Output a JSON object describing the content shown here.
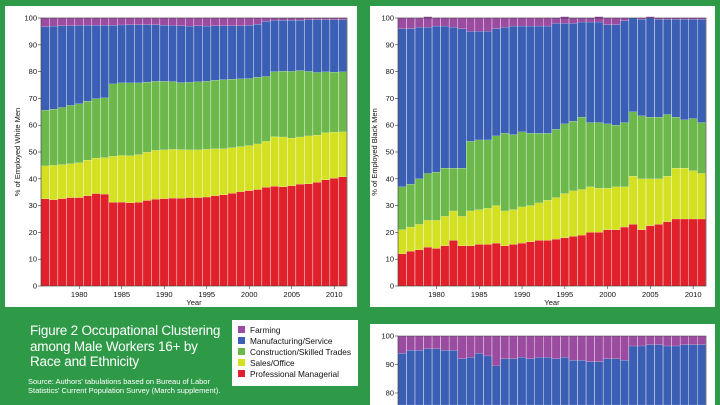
{
  "figure": {
    "title_lines": [
      "Figure 2  Occupational Clustering",
      "among Male Workers 16+ by",
      "Race and Ethnicity"
    ],
    "source_lines": [
      "Source: Authors' tabulations based on Bureau of Labor",
      "Statistics' Current Population Survey (March supplement)."
    ]
  },
  "legend": {
    "items": [
      {
        "label": "Farming",
        "color": "#9b4ba0"
      },
      {
        "label": "Manufacturing/Service",
        "color": "#3a5fb4"
      },
      {
        "label": "Construction/Skilled Trades",
        "color": "#6cb84a"
      },
      {
        "label": "Sales/Office",
        "color": "#d4e022"
      },
      {
        "label": "Professional Managerial",
        "color": "#e0202a"
      }
    ]
  },
  "chart_data": [
    {
      "type": "bar",
      "stacked": true,
      "ylabel": "% of Employed White Men",
      "xlabel": "Year",
      "ylim": [
        0,
        100
      ],
      "yticks": [
        0,
        10,
        20,
        30,
        40,
        50,
        60,
        70,
        80,
        90,
        100
      ],
      "xticks": [
        1980,
        1985,
        1990,
        1995,
        2000,
        2005,
        2010
      ],
      "x_start": 1976,
      "x_end": 2011,
      "series": [
        {
          "name": "Professional Managerial",
          "color": "#e0202a",
          "values": [
            32.5,
            32.2,
            32.6,
            33,
            33,
            33.7,
            34.5,
            34.3,
            31.2,
            31.3,
            31,
            31.2,
            31.9,
            32.4,
            32.6,
            32.8,
            32.7,
            33,
            33,
            33.2,
            33.7,
            34,
            34.6,
            35.2,
            35.6,
            36,
            36.8,
            37.2,
            37,
            37.4,
            38,
            38.1,
            38.7,
            39.6,
            40.2,
            40.7
          ]
        },
        {
          "name": "Sales/Office",
          "color": "#d4e022",
          "values": [
            12.3,
            12.8,
            12.7,
            12.6,
            13,
            13.3,
            13.2,
            13.6,
            17.2,
            17.4,
            17.6,
            17.8,
            18,
            18.2,
            18.2,
            18.2,
            18.2,
            17.8,
            17.8,
            17.8,
            17.5,
            17.2,
            17,
            16.8,
            16.8,
            17,
            17.2,
            18.5,
            18.6,
            17.8,
            17.6,
            17.9,
            17.6,
            17.6,
            17.2,
            16.8
          ]
        },
        {
          "name": "Construction/Skilled Trades",
          "color": "#6cb84a",
          "values": [
            20.8,
            21,
            21.3,
            21.8,
            22,
            22,
            22.2,
            22.3,
            27,
            27.1,
            27.2,
            26.8,
            26.2,
            25.8,
            25.6,
            25.3,
            25,
            25.2,
            25.4,
            25.4,
            25.6,
            25.8,
            25.6,
            25.3,
            25,
            24.9,
            24.2,
            24.3,
            24.6,
            24.9,
            24.8,
            24.1,
            23.4,
            22.7,
            22.4,
            22.4
          ]
        },
        {
          "name": "Manufacturing/Service",
          "color": "#3a5fb4",
          "values": [
            31.2,
            31,
            30.5,
            29.7,
            29.2,
            28.3,
            27.4,
            27.1,
            21.9,
            21.6,
            21.7,
            21.7,
            21.4,
            21.1,
            20.9,
            20.9,
            21.2,
            21,
            20.9,
            20.6,
            20.3,
            20.1,
            19.9,
            19.8,
            19.9,
            19.8,
            20.6,
            19.1,
            19,
            19.1,
            18.8,
            19.2,
            19.7,
            19.5,
            19.6,
            19.5
          ]
        },
        {
          "name": "Farming",
          "color": "#9b4ba0",
          "values": [
            3.2,
            3,
            2.9,
            2.9,
            2.8,
            2.7,
            2.7,
            2.7,
            2.7,
            2.6,
            2.5,
            2.5,
            2.5,
            2.5,
            2.7,
            2.8,
            2.9,
            3,
            2.9,
            3,
            2.9,
            2.9,
            2.9,
            2.9,
            2.7,
            2.3,
            1.2,
            0.9,
            0.8,
            0.8,
            0.8,
            0.7,
            0.6,
            0.6,
            0.6,
            0.6
          ]
        }
      ]
    },
    {
      "type": "bar",
      "stacked": true,
      "ylabel": "% of Employed Black Men",
      "xlabel": "Year",
      "ylim": [
        0,
        100
      ],
      "yticks": [
        0,
        10,
        20,
        30,
        40,
        50,
        60,
        70,
        80,
        90,
        100
      ],
      "xticks": [
        1980,
        1985,
        1990,
        1995,
        2000,
        2005,
        2010
      ],
      "x_start": 1976,
      "x_end": 2011,
      "series": [
        {
          "name": "Professional Managerial",
          "color": "#e0202a",
          "values": [
            12,
            13,
            13.5,
            14.5,
            14,
            15,
            17,
            15,
            15,
            15.5,
            15.5,
            16,
            15,
            15.5,
            16,
            16.5,
            17,
            17,
            17.5,
            18,
            18.5,
            19,
            20,
            20,
            21,
            21,
            22,
            23,
            21,
            22.5,
            23,
            24,
            25,
            25,
            25,
            25
          ]
        },
        {
          "name": "Sales/Office",
          "color": "#d4e022",
          "values": [
            9,
            9,
            9.5,
            10,
            10.5,
            11,
            11,
            11,
            13,
            13,
            13.5,
            14,
            13,
            13,
            13.5,
            13.5,
            14,
            15,
            15.5,
            16.5,
            17,
            17,
            17,
            16.5,
            15.5,
            16,
            15,
            18,
            19,
            17.5,
            17,
            17,
            19,
            19,
            18,
            17
          ]
        },
        {
          "name": "Construction/Skilled Trades",
          "color": "#6cb84a",
          "values": [
            16,
            16,
            17,
            17.5,
            18,
            18,
            16,
            18,
            26,
            26,
            25.5,
            26,
            29,
            28,
            28,
            27,
            26,
            25,
            25.5,
            26,
            26,
            27,
            24,
            24.5,
            24,
            23,
            24,
            24,
            23.5,
            23,
            23,
            23,
            19,
            18,
            19.5,
            19
          ]
        },
        {
          "name": "Manufacturing/Service",
          "color": "#3a5fb4",
          "values": [
            59,
            58,
            56.5,
            54.5,
            54.5,
            53,
            52.5,
            52,
            41,
            40.5,
            40.5,
            40,
            39.5,
            40.5,
            39.5,
            40,
            40,
            40,
            39.5,
            37.5,
            36.5,
            35.5,
            37.5,
            37.5,
            37,
            37.5,
            38,
            35,
            36,
            37,
            36.5,
            35.5,
            36.5,
            37.5,
            37,
            38.5
          ]
        },
        {
          "name": "Farming",
          "color": "#9b4ba0",
          "values": [
            4,
            4,
            3.5,
            4,
            3,
            3,
            3.5,
            4,
            5,
            5,
            5,
            4,
            3.5,
            3,
            3,
            3,
            3,
            3,
            2,
            2.5,
            2,
            1.5,
            1.5,
            2,
            2.5,
            2.5,
            1,
            0,
            0.5,
            0.5,
            0.5,
            0.5,
            0.5,
            0.5,
            0.5,
            0.5
          ]
        }
      ]
    },
    {
      "type": "bar",
      "stacked": true,
      "ylim": [
        0,
        100
      ],
      "yticks": [
        80,
        90,
        100
      ],
      "x_start": 1976,
      "x_end": 2011,
      "series": [
        {
          "name": "Manufacturing/Service",
          "color": "#3a5fb4",
          "values": [
            94,
            95,
            95,
            95.5,
            95.5,
            95,
            95,
            92,
            92.5,
            94,
            93,
            89.5,
            92,
            92,
            92.5,
            92,
            92.5,
            92.5,
            92,
            92.5,
            91.5,
            91.5,
            91,
            91,
            92,
            92,
            91.5,
            96.5,
            96.5,
            97,
            97,
            96.5,
            96.5,
            97,
            97,
            97
          ]
        },
        {
          "name": "Farming",
          "color": "#9b4ba0",
          "values": [
            6,
            5,
            5,
            4.5,
            4.5,
            5,
            5,
            8,
            7.5,
            6,
            7,
            10.5,
            8,
            8,
            7.5,
            8,
            7.5,
            7.5,
            8,
            7.5,
            8.5,
            8.5,
            9,
            9,
            8,
            8,
            8.5,
            3.5,
            3.5,
            3,
            3,
            3.5,
            3.5,
            3,
            3,
            3
          ]
        }
      ]
    }
  ]
}
